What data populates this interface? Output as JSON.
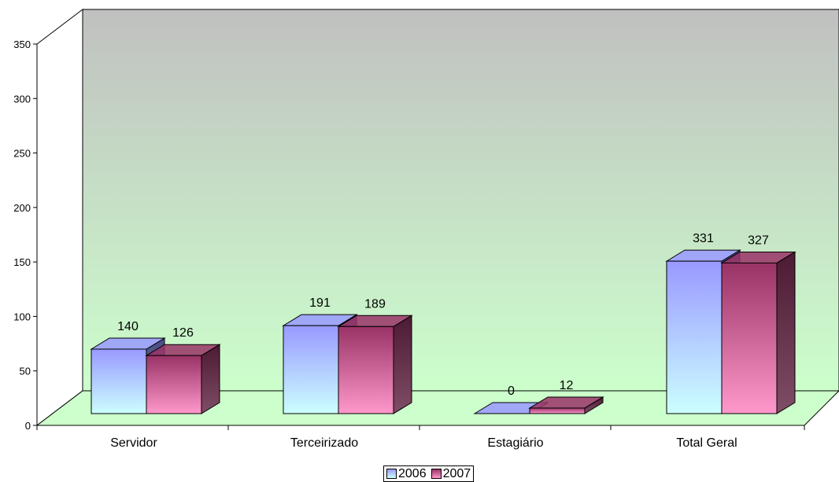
{
  "chart_data": {
    "type": "bar",
    "categories": [
      "Servidor",
      "Terceirizado",
      "Estagiário",
      "Total Geral"
    ],
    "series": [
      {
        "name": "2006",
        "values": [
          140,
          191,
          0,
          331
        ],
        "color_top": "#9999ff",
        "color_bottom": "#ccffff",
        "color_side": "#4b4b86"
      },
      {
        "name": "2007",
        "values": [
          126,
          189,
          12,
          327
        ],
        "color_top": "#993366",
        "color_bottom": "#ff99cc",
        "color_side": "#4d1a33"
      }
    ],
    "yticks": [
      0,
      50,
      100,
      150,
      200,
      250,
      300,
      350
    ],
    "ylim": [
      0,
      350
    ],
    "grid": false,
    "legend_position": "bottom-center",
    "wall_colors": [
      "#c0c0c0",
      "#ccffcc"
    ]
  }
}
